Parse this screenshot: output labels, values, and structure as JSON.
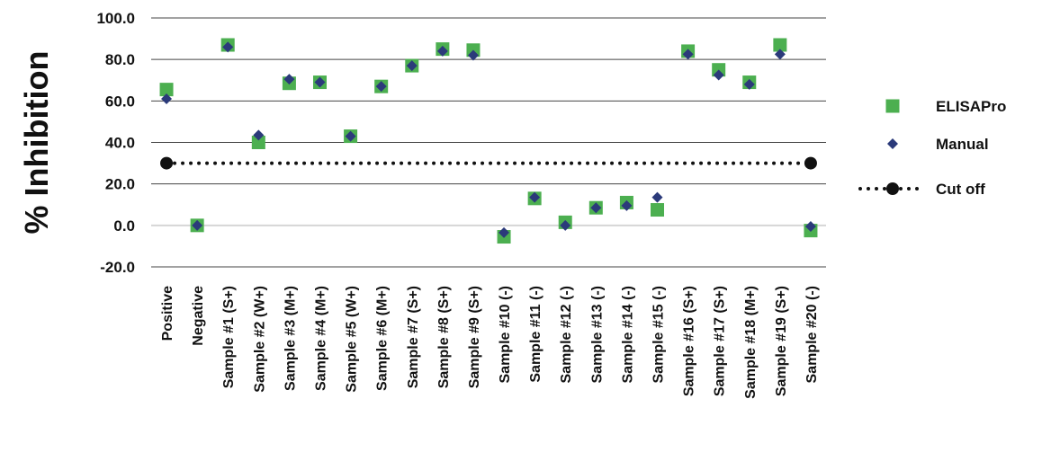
{
  "chart_data": {
    "type": "scatter",
    "ylabel": "% Inhibition",
    "ylim": [
      -20,
      100
    ],
    "y_ticks": [
      "100.0",
      "80.0",
      "60.0",
      "40.0",
      "20.0",
      "0.0",
      "-20.0"
    ],
    "categories": [
      "Positive",
      "Negative",
      "Sample #1 (S+)",
      "Sample #2 (W+)",
      "Sample #3 (M+)",
      "Sample #4 (M+)",
      "Sample #5 (W+)",
      "Sample #6 (M+)",
      "Sample #7 (S+)",
      "Sample #8 (S+)",
      "Sample #9 (S+)",
      "Sample #10 (-)",
      "Sample #11 (-)",
      "Sample #12 (-)",
      "Sample #13 (-)",
      "Sample #14 (-)",
      "Sample #15 (-)",
      "Sample #16 (S+)",
      "Sample #17 (S+)",
      "Sample #18 (M+)",
      "Sample #19 (S+)",
      "Sample #20 (-)"
    ],
    "series": [
      {
        "name": "ELISAPro",
        "marker": "square",
        "color": "#4caf50",
        "values": [
          65.5,
          0,
          87,
          40,
          68.5,
          69,
          43,
          67,
          77,
          85,
          84.5,
          -5.5,
          13,
          1.5,
          8.5,
          11,
          7.5,
          84,
          75,
          69,
          87,
          -2.5
        ]
      },
      {
        "name": "Manual",
        "marker": "diamond",
        "color": "#2b3a7a",
        "values": [
          61,
          0,
          86,
          43.5,
          70.5,
          69,
          43,
          67,
          77,
          84,
          82,
          -3.5,
          13.5,
          0,
          8.5,
          9.5,
          13.5,
          82.5,
          72.5,
          68,
          82.5,
          -0.5
        ]
      },
      {
        "name": "Cut off",
        "marker": "dotted-line",
        "color": "#111111",
        "values": [
          30,
          30
        ]
      }
    ],
    "grid": true,
    "legend_position": "right"
  }
}
